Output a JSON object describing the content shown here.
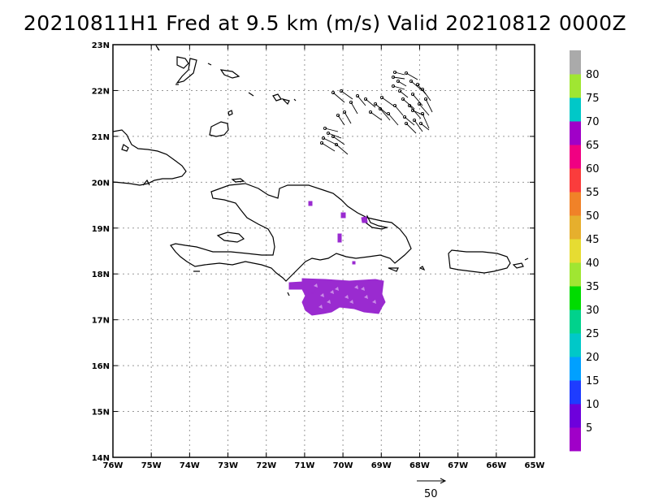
{
  "title": "20210811H1 Fred at 9.5 km (m/s) Valid 20210812 0000Z",
  "lat_labels": [
    "23N",
    "22N",
    "21N",
    "20N",
    "19N",
    "18N",
    "17N",
    "16N",
    "15N",
    "14N"
  ],
  "lon_labels": [
    "76W",
    "75W",
    "74W",
    "73W",
    "72W",
    "71W",
    "70W",
    "69W",
    "68W",
    "67W",
    "66W",
    "65W"
  ],
  "colorbar": {
    "labels": [
      "5",
      "10",
      "15",
      "20",
      "25",
      "30",
      "35",
      "40",
      "45",
      "50",
      "55",
      "60",
      "65",
      "70",
      "75",
      "80"
    ],
    "colors": [
      "#a000c8",
      "#6e00dc",
      "#1e3cff",
      "#00a0ff",
      "#00c8c8",
      "#00d28c",
      "#00dc00",
      "#a0e632",
      "#e6dc32",
      "#e6af2d",
      "#f08228",
      "#fa3c3c",
      "#f00082",
      "#a000c8",
      "#00c8c8",
      "#a0e632",
      "#aaaaaa"
    ]
  },
  "vector_scale_label": "50",
  "wind_shading_color": "#9a2bd0"
}
